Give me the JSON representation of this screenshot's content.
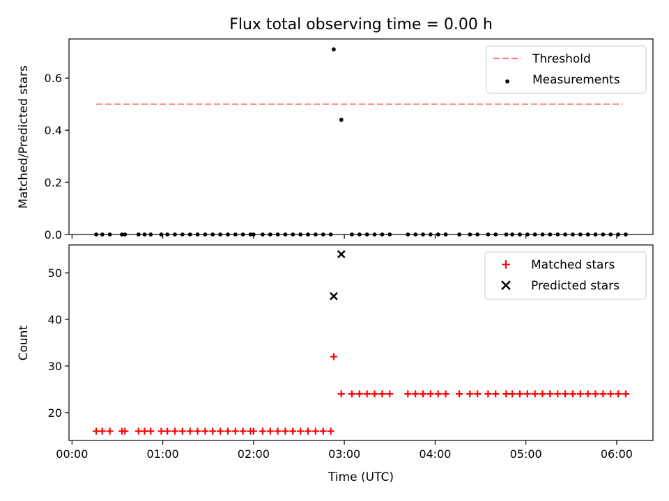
{
  "chart_data": [
    {
      "type": "scatter",
      "title": "Flux total observing time = 0.00 h",
      "xlabel": "",
      "ylabel": "Matched/Predicted stars",
      "xlim": [
        "23:58",
        "06:24"
      ],
      "ylim": [
        0,
        0.75
      ],
      "yticks": [
        0.0,
        0.2,
        0.4,
        0.6
      ],
      "ytick_labels": [
        "0.0",
        "0.2",
        "0.4",
        "0.6"
      ],
      "legend": {
        "placement": "top-right"
      },
      "series": [
        {
          "name": "Threshold",
          "kind": "dashed-line",
          "color": "#ff7f7f",
          "x": [
            "00:16",
            "06:04"
          ],
          "y": [
            0.5,
            0.5
          ]
        },
        {
          "name": "Measurements",
          "kind": "points",
          "color": "#000000",
          "x": [
            "00:16",
            "00:20",
            "00:25",
            "00:33",
            "00:35",
            "00:44",
            "00:48",
            "00:52",
            "00:59",
            "01:03",
            "01:08",
            "01:13",
            "01:18",
            "01:23",
            "01:28",
            "01:33",
            "01:38",
            "01:43",
            "01:48",
            "01:53",
            "01:58",
            "02:00",
            "02:06",
            "02:11",
            "02:16",
            "02:21",
            "02:26",
            "02:31",
            "02:36",
            "02:41",
            "02:46",
            "02:51",
            "02:53",
            "02:58",
            "03:05",
            "03:10",
            "03:15",
            "03:20",
            "03:25",
            "03:30",
            "03:42",
            "03:47",
            "03:52",
            "03:57",
            "04:02",
            "04:07",
            "04:16",
            "04:23",
            "04:28",
            "04:35",
            "04:40",
            "04:47",
            "04:51",
            "04:56",
            "05:01",
            "05:06",
            "05:11",
            "05:16",
            "05:21",
            "05:26",
            "05:31",
            "05:36",
            "05:41",
            "05:46",
            "05:51",
            "05:56",
            "06:01",
            "06:06"
          ],
          "y": [
            0,
            0,
            0,
            0,
            0,
            0,
            0,
            0,
            0,
            0,
            0,
            0,
            0,
            0,
            0,
            0,
            0,
            0,
            0,
            0,
            0,
            0,
            0,
            0,
            0,
            0,
            0,
            0,
            0,
            0,
            0,
            0,
            0.71,
            0.44,
            0,
            0,
            0,
            0,
            0,
            0,
            0,
            0,
            0,
            0,
            0,
            0,
            0,
            0,
            0,
            0,
            0,
            0,
            0,
            0,
            0,
            0,
            0,
            0,
            0,
            0,
            0,
            0,
            0,
            0,
            0,
            0,
            0,
            0
          ]
        }
      ]
    },
    {
      "type": "scatter",
      "title": "",
      "xlabel": "Time (UTC)",
      "ylabel": "Count",
      "xlim": [
        "23:58",
        "06:24"
      ],
      "ylim": [
        14,
        56
      ],
      "yticks": [
        20,
        30,
        40,
        50
      ],
      "ytick_labels": [
        "20",
        "30",
        "40",
        "50"
      ],
      "xticks": [
        "00:00",
        "01:00",
        "02:00",
        "03:00",
        "04:00",
        "05:00",
        "06:00"
      ],
      "xtick_labels": [
        "00:00",
        "01:00",
        "02:00",
        "03:00",
        "04:00",
        "05:00",
        "06:00"
      ],
      "legend": {
        "placement": "top-right"
      },
      "series": [
        {
          "name": "Matched stars",
          "kind": "plus",
          "color": "#ff0000",
          "x": [
            "00:16",
            "00:20",
            "00:25",
            "00:33",
            "00:35",
            "00:44",
            "00:48",
            "00:52",
            "00:59",
            "01:03",
            "01:08",
            "01:13",
            "01:18",
            "01:23",
            "01:28",
            "01:33",
            "01:38",
            "01:43",
            "01:48",
            "01:53",
            "01:58",
            "02:00",
            "02:06",
            "02:11",
            "02:16",
            "02:21",
            "02:26",
            "02:31",
            "02:36",
            "02:41",
            "02:46",
            "02:51",
            "02:53",
            "02:58",
            "03:05",
            "03:10",
            "03:15",
            "03:20",
            "03:25",
            "03:30",
            "03:42",
            "03:47",
            "03:52",
            "03:57",
            "04:02",
            "04:07",
            "04:16",
            "04:23",
            "04:28",
            "04:35",
            "04:40",
            "04:47",
            "04:51",
            "04:56",
            "05:01",
            "05:06",
            "05:11",
            "05:16",
            "05:21",
            "05:26",
            "05:31",
            "05:36",
            "05:41",
            "05:46",
            "05:51",
            "05:56",
            "06:01",
            "06:06"
          ],
          "y": [
            16,
            16,
            16,
            16,
            16,
            16,
            16,
            16,
            16,
            16,
            16,
            16,
            16,
            16,
            16,
            16,
            16,
            16,
            16,
            16,
            16,
            16,
            16,
            16,
            16,
            16,
            16,
            16,
            16,
            16,
            16,
            16,
            32,
            24,
            24,
            24,
            24,
            24,
            24,
            24,
            24,
            24,
            24,
            24,
            24,
            24,
            24,
            24,
            24,
            24,
            24,
            24,
            24,
            24,
            24,
            24,
            24,
            24,
            24,
            24,
            24,
            24,
            24,
            24,
            24,
            24,
            24,
            24
          ]
        },
        {
          "name": "Predicted stars",
          "kind": "x",
          "color": "#000000",
          "x": [
            "02:53",
            "02:58"
          ],
          "y": [
            45,
            54
          ]
        }
      ]
    }
  ]
}
